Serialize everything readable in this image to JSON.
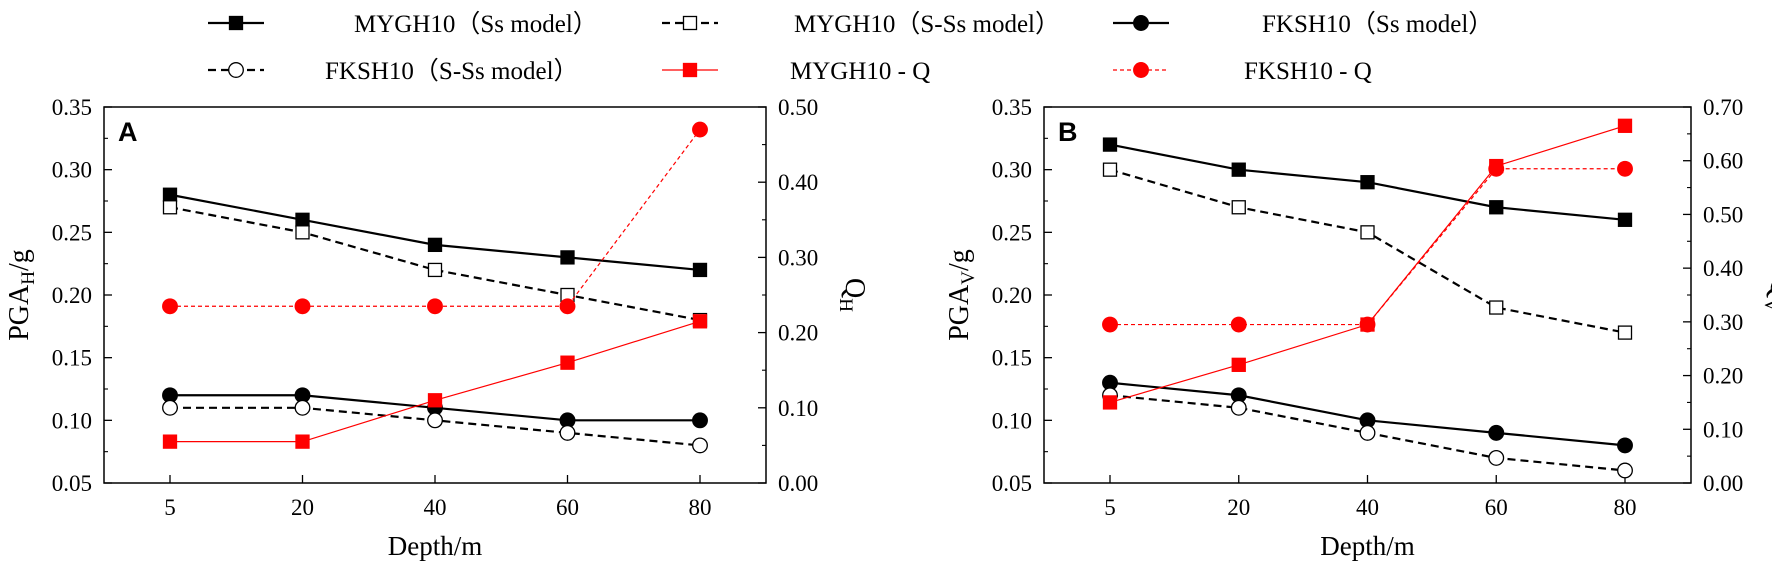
{
  "legend": {
    "entries": [
      {
        "label": "MYGH10（Ss model）",
        "series": "mygh_ss"
      },
      {
        "label": "MYGH10（S-Ss model）",
        "series": "mygh_sss"
      },
      {
        "label": "FKSH10（Ss model）",
        "series": "fksh_ss"
      },
      {
        "label": "FKSH10（S-Ss model）",
        "series": "fksh_sss"
      },
      {
        "label": "MYGH10 - Q",
        "series": "mygh_q"
      },
      {
        "label": "FKSH10 - Q",
        "series": "fksh_q"
      }
    ]
  },
  "styles": {
    "mygh_ss": {
      "color": "#000000",
      "marker": "square",
      "filled": true,
      "dash": false,
      "stroke": 2.2
    },
    "mygh_sss": {
      "color": "#000000",
      "marker": "square",
      "filled": false,
      "dash": true,
      "stroke": 2.2
    },
    "fksh_ss": {
      "color": "#000000",
      "marker": "circle",
      "filled": true,
      "dash": false,
      "stroke": 2.2
    },
    "fksh_sss": {
      "color": "#000000",
      "marker": "circle",
      "filled": false,
      "dash": true,
      "stroke": 2.2
    },
    "mygh_q": {
      "color": "#ff0000",
      "marker": "square",
      "filled": true,
      "dash": false,
      "stroke": 1.2
    },
    "fksh_q": {
      "color": "#ff0000",
      "marker": "circle",
      "filled": true,
      "dash": true,
      "stroke": 1.2
    }
  },
  "chart_data": [
    {
      "type": "line",
      "panel_label": "A",
      "categories": [
        "5",
        "20",
        "40",
        "60",
        "80"
      ],
      "xlabel": "Depth/m",
      "ylabel": "PGA",
      "ylabel_sub": "H",
      "ylabel_tail": "/g",
      "ylim": [
        0.05,
        0.35
      ],
      "yticks": [
        "0.05",
        "0.10",
        "0.15",
        "0.20",
        "0.25",
        "0.30",
        "0.35"
      ],
      "y2label": "Q",
      "y2label_sub": "H",
      "y2lim": [
        0,
        0.5
      ],
      "y2ticks": [
        "0.00",
        "0.10",
        "0.20",
        "0.30",
        "0.40",
        "0.50"
      ],
      "series": [
        {
          "key": "mygh_ss",
          "name": "MYGH10（Ss model）",
          "axis": "left",
          "values": [
            0.28,
            0.26,
            0.24,
            0.23,
            0.22
          ]
        },
        {
          "key": "mygh_sss",
          "name": "MYGH10（S-Ss model）",
          "axis": "left",
          "values": [
            0.27,
            0.25,
            0.22,
            0.2,
            0.18
          ]
        },
        {
          "key": "fksh_ss",
          "name": "FKSH10（Ss model）",
          "axis": "left",
          "values": [
            0.12,
            0.12,
            0.11,
            0.1,
            0.1
          ]
        },
        {
          "key": "fksh_sss",
          "name": "FKSH10（S-Ss model）",
          "axis": "left",
          "values": [
            0.11,
            0.11,
            0.1,
            0.09,
            0.08
          ]
        },
        {
          "key": "mygh_q",
          "name": "MYGH10 - Q",
          "axis": "right",
          "values": [
            0.055,
            0.055,
            0.11,
            0.16,
            0.215
          ]
        },
        {
          "key": "fksh_q",
          "name": "FKSH10 - Q",
          "axis": "right",
          "values": [
            0.235,
            0.235,
            0.235,
            0.235,
            0.47
          ]
        }
      ]
    },
    {
      "type": "line",
      "panel_label": "B",
      "categories": [
        "5",
        "20",
        "40",
        "60",
        "80"
      ],
      "xlabel": "Depth/m",
      "ylabel": "PGA",
      "ylabel_sub": "V",
      "ylabel_tail": "/g",
      "ylim": [
        0.05,
        0.35
      ],
      "yticks": [
        "0.05",
        "0.10",
        "0.15",
        "0.20",
        "0.25",
        "0.30",
        "0.35"
      ],
      "y2label": "Q",
      "y2label_sub": "V",
      "y2lim": [
        0,
        0.7
      ],
      "y2ticks": [
        "0.00",
        "0.10",
        "0.20",
        "0.30",
        "0.40",
        "0.50",
        "0.60",
        "0.70"
      ],
      "series": [
        {
          "key": "mygh_ss",
          "name": "MYGH10（Ss model）",
          "axis": "left",
          "values": [
            0.32,
            0.3,
            0.29,
            0.27,
            0.26
          ]
        },
        {
          "key": "mygh_sss",
          "name": "MYGH10（S-Ss model）",
          "axis": "left",
          "values": [
            0.3,
            0.27,
            0.25,
            0.19,
            0.17
          ]
        },
        {
          "key": "fksh_ss",
          "name": "FKSH10（Ss model）",
          "axis": "left",
          "values": [
            0.13,
            0.12,
            0.1,
            0.09,
            0.08
          ]
        },
        {
          "key": "fksh_sss",
          "name": "FKSH10（S-Ss model）",
          "axis": "left",
          "values": [
            0.12,
            0.11,
            0.09,
            0.07,
            0.06
          ]
        },
        {
          "key": "mygh_q",
          "name": "MYGH10 - Q",
          "axis": "right",
          "values": [
            0.15,
            0.22,
            0.295,
            0.59,
            0.665
          ]
        },
        {
          "key": "fksh_q",
          "name": "FKSH10 - Q",
          "axis": "right",
          "values": [
            0.295,
            0.295,
            0.295,
            0.585,
            0.585
          ]
        }
      ]
    }
  ]
}
